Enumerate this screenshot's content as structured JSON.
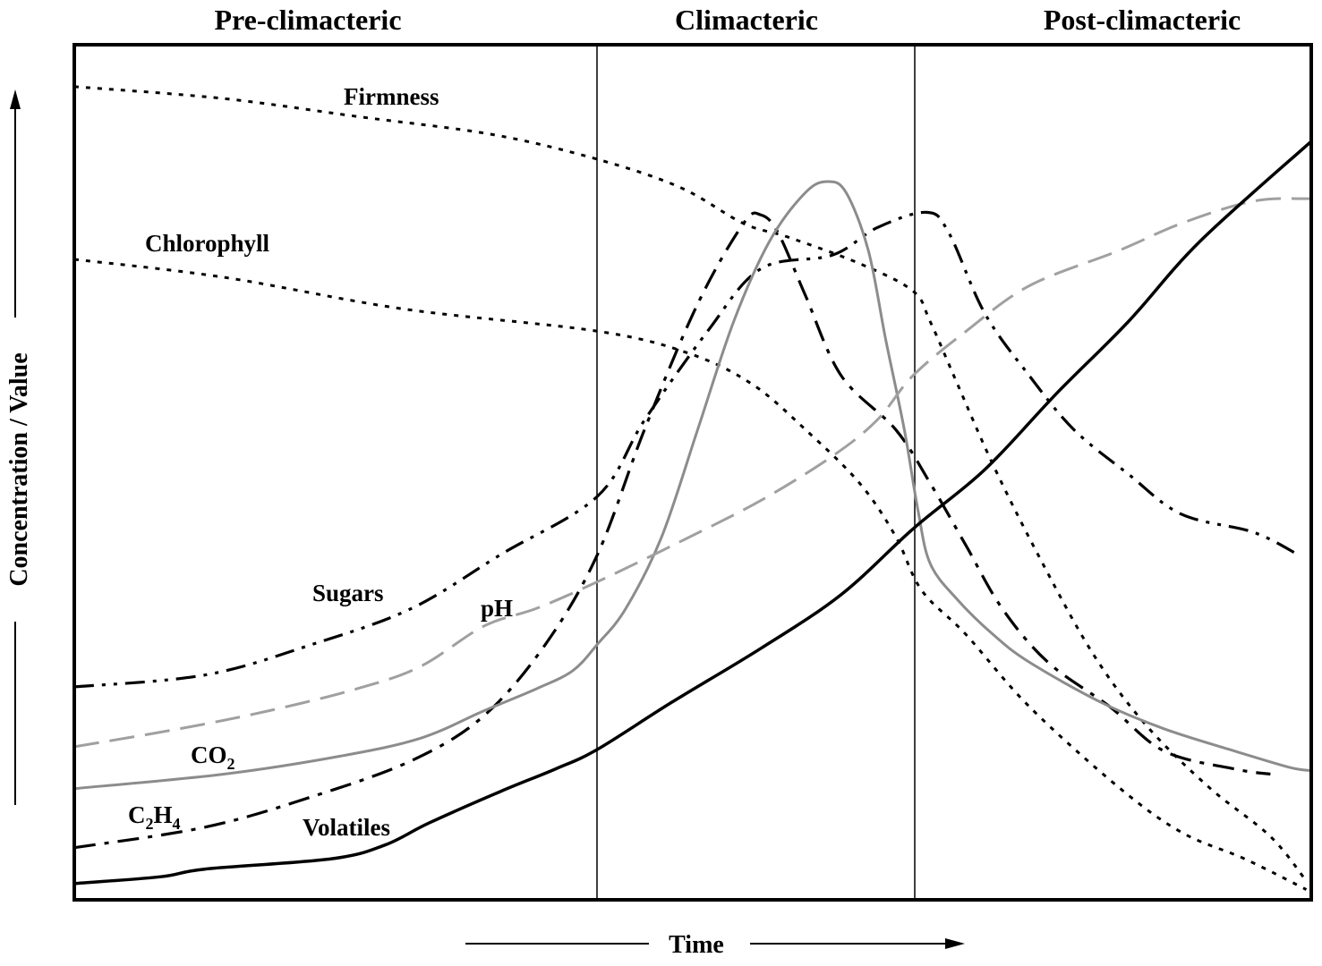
{
  "chart_data": {
    "type": "line",
    "title": "",
    "xlabel": "Time",
    "ylabel": "Concentration / Value",
    "xlim": [
      0,
      100
    ],
    "ylim": [
      0,
      100
    ],
    "grid": false,
    "legend": "inline labels",
    "phases": [
      {
        "label": "Pre-climacteric",
        "start": 0,
        "end": 42.3
      },
      {
        "label": "Climacteric",
        "start": 42.3,
        "end": 67.9
      },
      {
        "label": "Post-climacteric",
        "start": 67.9,
        "end": 100
      }
    ],
    "series": [
      {
        "name": "Firmness",
        "label": "Firmness",
        "color": "#000000",
        "style": "dotted",
        "x": [
          0,
          12.1,
          22.9,
          33.8,
          42.3,
          49.0,
          54.1,
          57.7,
          63.5,
          67.8,
          69.2,
          71.4,
          74.3,
          77.9,
          82.3,
          86.6,
          91.7,
          96.7,
          99.6
        ],
        "y": [
          95.1,
          93.7,
          91.6,
          89.5,
          86.6,
          83.3,
          79.1,
          77.5,
          74.4,
          71.2,
          67.6,
          60.3,
          50.8,
          40.4,
          28.9,
          20.5,
          13.2,
          7.4,
          2.2
        ]
      },
      {
        "name": "Chlorophyll",
        "label": "Chlorophyll",
        "color": "#000000",
        "style": "dotted",
        "x": [
          0,
          12.1,
          26.6,
          42.3,
          49.7,
          54.8,
          59.1,
          63.5,
          66.4,
          68.5,
          72.1,
          77.2,
          84.4,
          89.5,
          94.6,
          99.6
        ],
        "y": [
          74.9,
          72.8,
          69.1,
          66.5,
          63.9,
          60.3,
          55.0,
          48.7,
          42.5,
          36.2,
          31.0,
          22.6,
          13.2,
          7.9,
          4.8,
          1.2
        ]
      },
      {
        "name": "Sugars",
        "label": "Sugars",
        "color": "#000000",
        "style": "dash-dot-dot",
        "x": [
          0,
          10.6,
          19.3,
          27.3,
          34.5,
          42.3,
          46.1,
          51.2,
          55.5,
          61.3,
          64.9,
          68.9,
          70.7,
          73.6,
          77.2,
          80.8,
          85.2,
          89.5,
          95.3,
          98.9
        ],
        "y": [
          24.9,
          26.3,
          29.9,
          34.1,
          40.4,
          47.2,
          56.1,
          66.5,
          73.8,
          75.4,
          78.6,
          80.4,
          78.0,
          68.6,
          61.3,
          55.0,
          49.8,
          45.1,
          43.0,
          40.4
        ]
      },
      {
        "name": "C2H4",
        "label": "C",
        "sub1": "2",
        "mid": "H",
        "sub2": "4",
        "color": "#000000",
        "style": "dash-dot",
        "x": [
          0,
          10.6,
          19.3,
          27.3,
          33.1,
          38.1,
          42.3,
          46.1,
          50.4,
          54.1,
          55.5,
          56.9,
          59.1,
          62.0,
          66.4,
          69.2,
          72.1,
          75.0,
          78.7,
          83.7,
          88.1,
          93.8,
          96.7
        ],
        "y": [
          6.1,
          8.5,
          12.1,
          16.3,
          21.5,
          29.9,
          40.4,
          55.0,
          69.7,
          79.1,
          80.1,
          78.0,
          70.7,
          61.3,
          55.0,
          48.7,
          41.4,
          34.1,
          27.8,
          22.6,
          17.4,
          15.3,
          14.7
        ]
      },
      {
        "name": "CO2",
        "label": "CO",
        "sub1": "2",
        "color": "#8c8c8c",
        "style": "solid",
        "x": [
          0,
          12.1,
          21.5,
          28.0,
          33.1,
          37.4,
          40.3,
          42.3,
          44.6,
          47.5,
          50.4,
          53.3,
          56.2,
          59.1,
          60.9,
          62.4,
          64.2,
          65.6,
          67.1,
          68.2,
          69.2,
          71.4,
          74.3,
          77.2,
          83.0,
          88.1,
          93.8,
          98.2,
          100
        ],
        "y": [
          13.0,
          14.7,
          16.8,
          18.9,
          22.1,
          24.7,
          26.8,
          29.9,
          34.1,
          42.5,
          55.0,
          67.6,
          77.0,
          82.7,
          84.0,
          82.7,
          75.9,
          65.5,
          55.0,
          45.6,
          39.3,
          35.1,
          31.0,
          27.8,
          23.1,
          20.0,
          17.4,
          15.5,
          15.1
        ]
      },
      {
        "name": "pH",
        "label": "pH",
        "color": "#a0a0a0",
        "style": "dashed",
        "x": [
          0,
          8.5,
          15.7,
          22.9,
          28.0,
          33.1,
          37.4,
          42.3,
          49.0,
          55.5,
          61.3,
          64.9,
          67.8,
          72.1,
          77.2,
          84.4,
          89.5,
          95.3,
          100
        ],
        "y": [
          17.9,
          20.0,
          22.1,
          24.7,
          27.3,
          32.0,
          34.1,
          37.2,
          41.9,
          46.7,
          51.9,
          56.1,
          61.3,
          66.5,
          71.8,
          75.9,
          79.1,
          81.7,
          82.0
        ]
      },
      {
        "name": "Volatiles",
        "label": "Volatiles",
        "color": "#000000",
        "style": "solid-bold",
        "x": [
          0,
          7.0,
          10.6,
          20.8,
          25.1,
          28.7,
          34.5,
          38.9,
          42.3,
          48.3,
          55.5,
          62.0,
          67.9,
          73.6,
          79.4,
          85.2,
          91.0,
          100
        ],
        "y": [
          1.9,
          2.7,
          3.6,
          4.8,
          6.4,
          9.0,
          12.7,
          15.3,
          17.6,
          23.1,
          29.4,
          35.7,
          43.5,
          50.3,
          59.2,
          67.6,
          77.0,
          88.7
        ]
      }
    ]
  }
}
